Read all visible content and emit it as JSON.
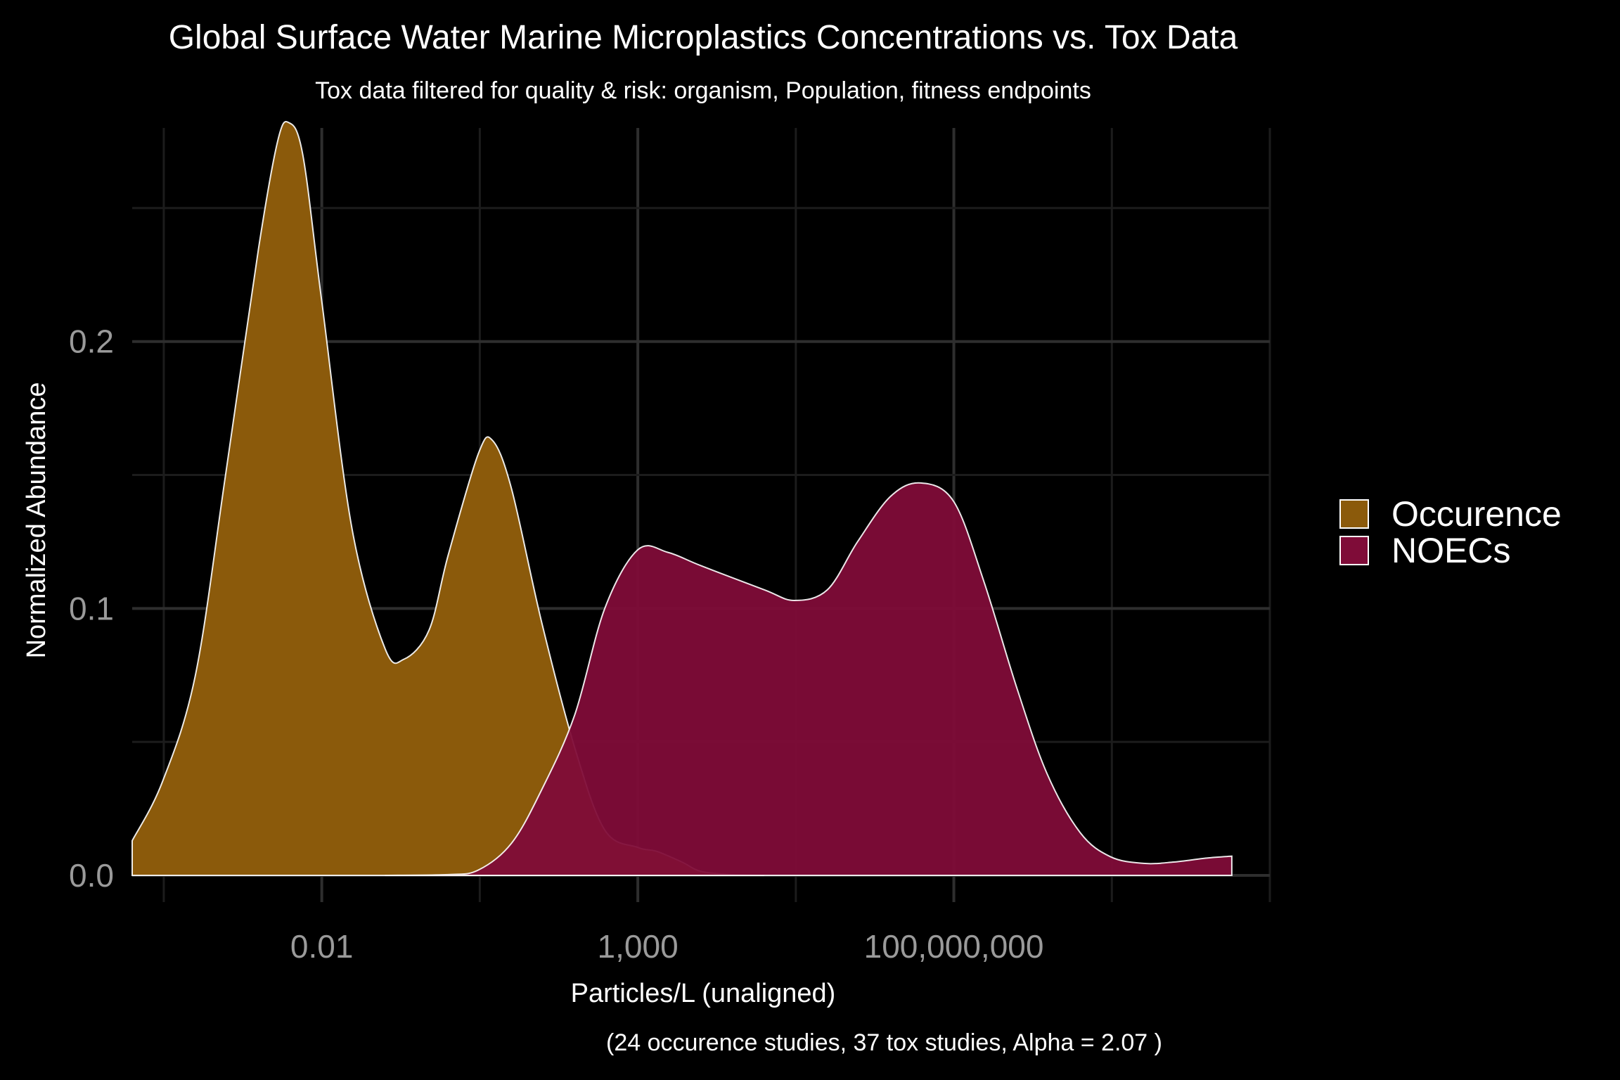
{
  "chart_data": {
    "type": "area",
    "title": "Global Surface Water Marine Microplastics Concentrations vs. Tox Data",
    "subtitle": "Tox data filtered for quality & risk: organism, Population, fitness endpoints",
    "caption": "(24 occurence studies, 37 tox studies, Alpha =  2.07 )",
    "xlabel": "Particles/L (unaligned)",
    "ylabel": "Normalized Abundance",
    "x_scale": "log10",
    "xlim": [
      1e-05,
      10000000000000
    ],
    "ylim": [
      0,
      0.28
    ],
    "x_ticks": [
      0.01,
      1000,
      100000000
    ],
    "x_tick_labels": [
      "0.01",
      "1,000",
      "100,000,000"
    ],
    "y_ticks": [
      0,
      0.1,
      0.2
    ],
    "y_tick_labels": [
      "0.0",
      "0.1",
      "0.2"
    ],
    "grid": true,
    "legend_position": "right",
    "series": [
      {
        "name": "Occurence",
        "color": "#8B5A0B",
        "points": [
          [
            1e-05,
            0.013
          ],
          [
            3e-05,
            0.035
          ],
          [
            0.0001,
            0.075
          ],
          [
            0.0003,
            0.15
          ],
          [
            0.001,
            0.235
          ],
          [
            0.002,
            0.275
          ],
          [
            0.003,
            0.282
          ],
          [
            0.005,
            0.27
          ],
          [
            0.01,
            0.215
          ],
          [
            0.03,
            0.13
          ],
          [
            0.1,
            0.085
          ],
          [
            0.2,
            0.081
          ],
          [
            0.5,
            0.092
          ],
          [
            1,
            0.12
          ],
          [
            3,
            0.158
          ],
          [
            5,
            0.163
          ],
          [
            10,
            0.145
          ],
          [
            30,
            0.095
          ],
          [
            100,
            0.048
          ],
          [
            300,
            0.017
          ],
          [
            1000,
            0.0105
          ],
          [
            2000,
            0.009
          ],
          [
            5000,
            0.005
          ],
          [
            10000,
            0.0015
          ],
          [
            30000,
            0.0003
          ],
          [
            100000,
            0
          ]
        ]
      },
      {
        "name": "NOECs",
        "color": "#7F0C38",
        "points": [
          [
            0.1,
            0
          ],
          [
            1,
            0.0003
          ],
          [
            3,
            0.002
          ],
          [
            10,
            0.012
          ],
          [
            30,
            0.032
          ],
          [
            100,
            0.06
          ],
          [
            300,
            0.1
          ],
          [
            1000,
            0.122
          ],
          [
            3000,
            0.121
          ],
          [
            10000,
            0.116
          ],
          [
            100000,
            0.107
          ],
          [
            300000,
            0.103
          ],
          [
            1000000,
            0.107
          ],
          [
            3000000,
            0.125
          ],
          [
            10000000,
            0.142
          ],
          [
            30000000,
            0.147
          ],
          [
            100000000,
            0.14
          ],
          [
            300000000,
            0.11
          ],
          [
            1000000000,
            0.07
          ],
          [
            3000000000,
            0.038
          ],
          [
            10000000000,
            0.016
          ],
          [
            30000000000,
            0.007
          ],
          [
            100000000000,
            0.0045
          ],
          [
            300000000000,
            0.005
          ],
          [
            1000000000000,
            0.0065
          ],
          [
            2500000000000,
            0.0072
          ]
        ]
      }
    ]
  }
}
